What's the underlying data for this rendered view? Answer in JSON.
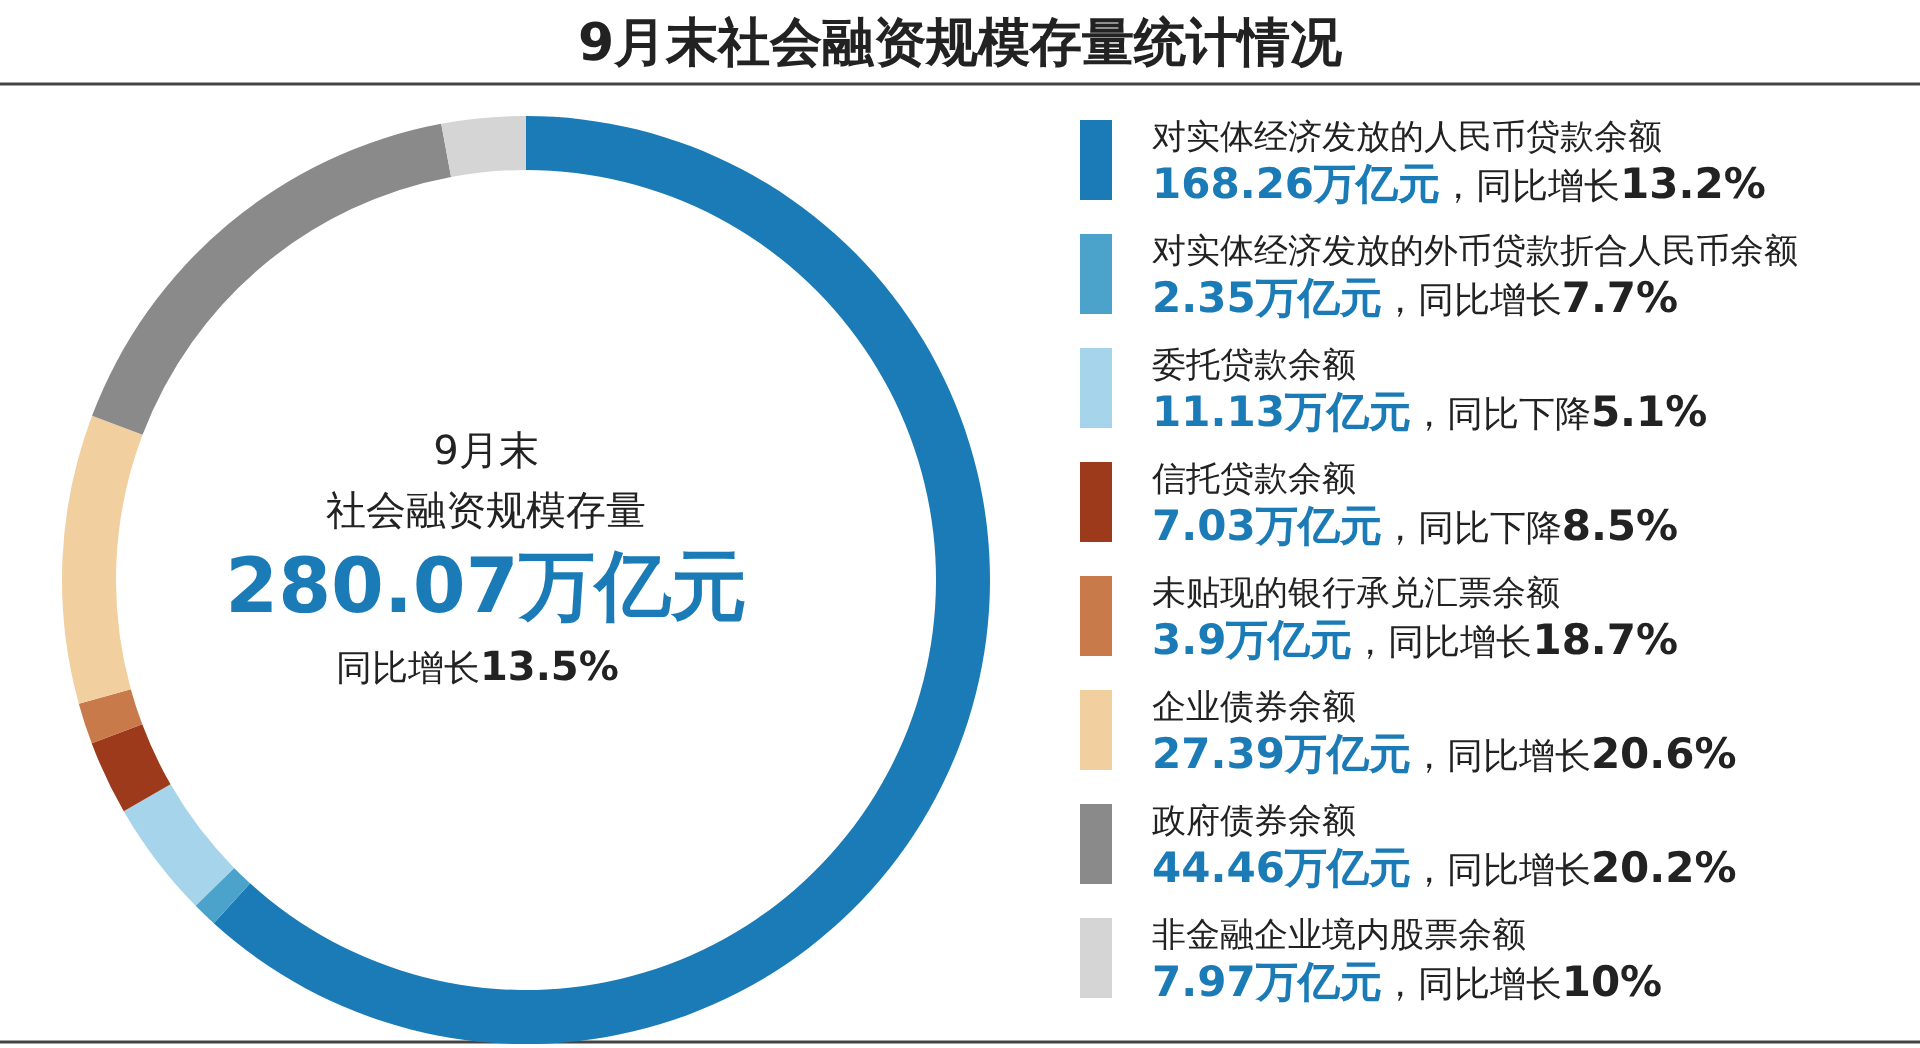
{
  "chart_data": {
    "type": "donut",
    "title": "9月末社会融资规模存量统计情况",
    "categories": [
      "对实体经济发放的人民币贷款余额",
      "对实体经济发放的外币贷款折合人民币余额",
      "委托贷款余额",
      "信托贷款余额",
      "未贴现的银行承兑汇票余额",
      "企业债券余额",
      "政府债券余额",
      "非金融企业境内股票余额"
    ],
    "values": [
      168.26,
      2.35,
      11.13,
      7.03,
      3.9,
      27.39,
      44.46,
      7.97
    ],
    "colors": [
      "#1a7bb6",
      "#4ba3cc",
      "#a6d4ea",
      "#9c3a1b",
      "#c97a4a",
      "#f2cf9f",
      "#8a8a8a",
      "#d5d5d5"
    ],
    "value_labels": [
      "168.26万亿元",
      "2.35万亿元",
      "11.13万亿元",
      "7.03万亿元",
      "3.9万亿元",
      "27.39万亿元",
      "44.46万亿元",
      "7.97万亿元"
    ],
    "annotations": [
      "9月末",
      "社会融资规模存量",
      "280.07万亿元",
      "同比增长13.5%",
      "，同比增长13.2%",
      "，同比增长7.7%",
      "，同比下降5.1%",
      "，同比下降8.5%",
      "，同比增长18.7%",
      "，同比增长20.6%",
      "，同比增长20.2%",
      "，同比增长10%"
    ],
    "legend": "right"
  }
}
